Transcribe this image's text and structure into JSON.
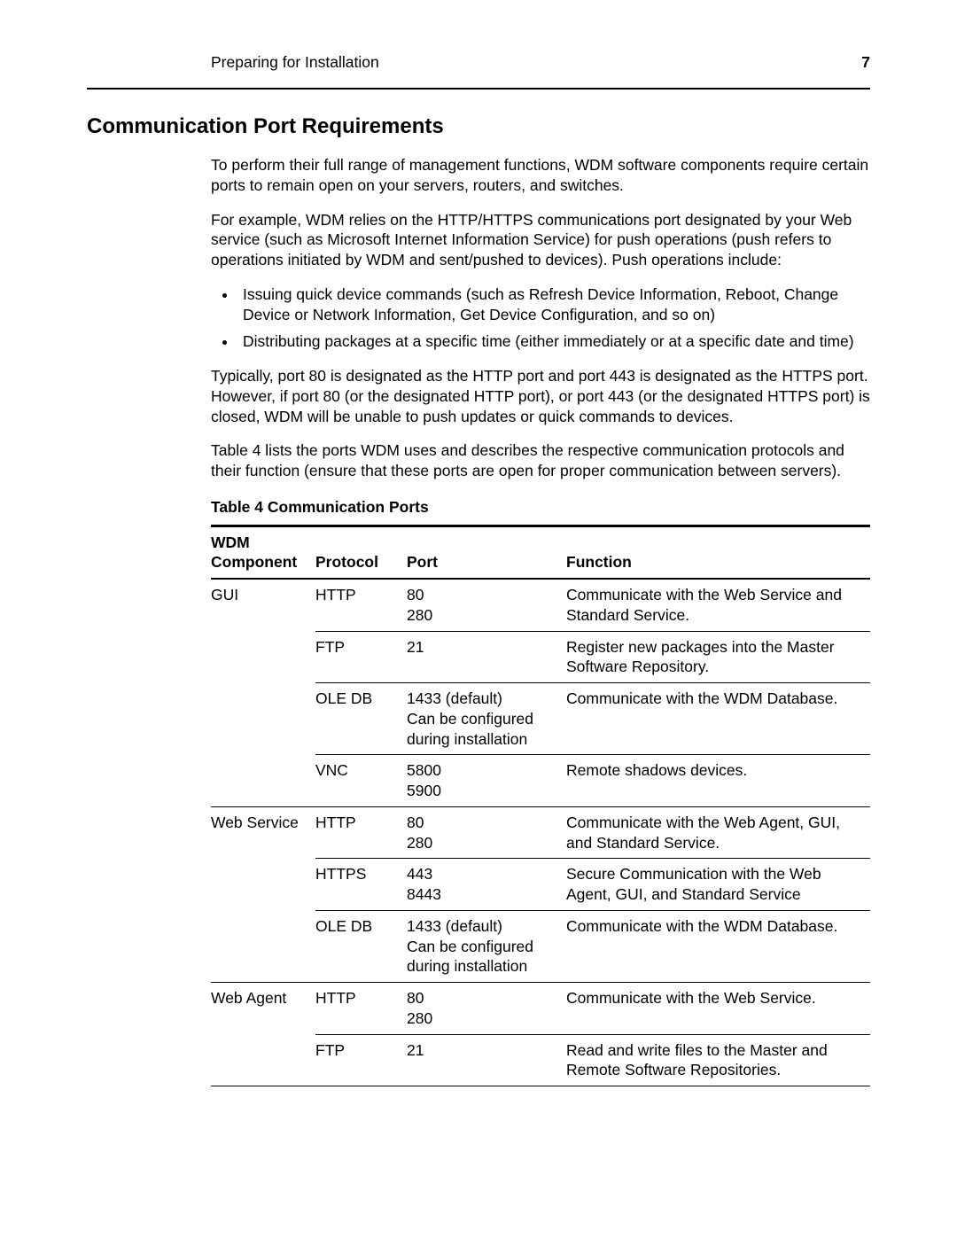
{
  "header": {
    "left": "Preparing for Installation",
    "page_number": "7"
  },
  "section_title": "Communication Port Requirements",
  "paragraphs": {
    "p1": "To perform their full range of management functions, WDM software components require certain ports to remain open on your servers, routers, and switches.",
    "p2": "For example, WDM relies on the HTTP/HTTPS communications port designated by your Web service (such as Microsoft Internet Information Service) for push operations (push refers to operations initiated by WDM and sent/pushed to devices). Push operations include:",
    "li1": "Issuing quick device commands (such as Refresh Device Information, Reboot, Change Device or Network Information, Get Device Configuration, and so on)",
    "li2": "Distributing packages at a specific time (either immediately or at a specific date and time)",
    "p3": "Typically, port 80 is designated as the HTTP port and port 443 is designated as the HTTPS port. However, if port 80 (or the designated HTTP port), or port 443 (or the designated HTTPS port) is closed, WDM will be unable to push updates or quick commands to devices.",
    "p4": "Table 4 lists the ports WDM uses and describes the respective communication protocols and their function (ensure that these ports are open for proper communication between servers)."
  },
  "table": {
    "caption": "Table 4    Communication Ports",
    "headers": {
      "component": "WDM Component",
      "protocol": "Protocol",
      "port": "Port",
      "function": "Function"
    },
    "rows": [
      {
        "component": "GUI",
        "protocol": "HTTP",
        "port": "80\n280",
        "function": "Communicate with the Web Service and Standard Service."
      },
      {
        "component": "",
        "protocol": "FTP",
        "port": "21",
        "function": "Register new packages into the Master Software Repository."
      },
      {
        "component": "",
        "protocol": "OLE DB",
        "port": "1433 (default)\nCan be configured during installation",
        "function": "Communicate with the WDM Database."
      },
      {
        "component": "",
        "protocol": "VNC",
        "port": "5800\n5900",
        "function": "Remote shadows devices."
      },
      {
        "component": "Web Service",
        "protocol": "HTTP",
        "port": "80\n280",
        "function": "Communicate with the Web Agent, GUI, and Standard Service."
      },
      {
        "component": "",
        "protocol": "HTTPS",
        "port": "443\n8443",
        "function": "Secure Communication with the Web Agent, GUI, and Standard Service"
      },
      {
        "component": "",
        "protocol": "OLE DB",
        "port": "1433 (default)\nCan be configured during installation",
        "function": "Communicate with the WDM Database."
      },
      {
        "component": "Web Agent",
        "protocol": "HTTP",
        "port": "80\n280",
        "function": "Communicate with the Web Service."
      },
      {
        "component": "",
        "protocol": "FTP",
        "port": "21",
        "function": "Read and write files to the Master and Remote Software Repositories."
      }
    ]
  }
}
